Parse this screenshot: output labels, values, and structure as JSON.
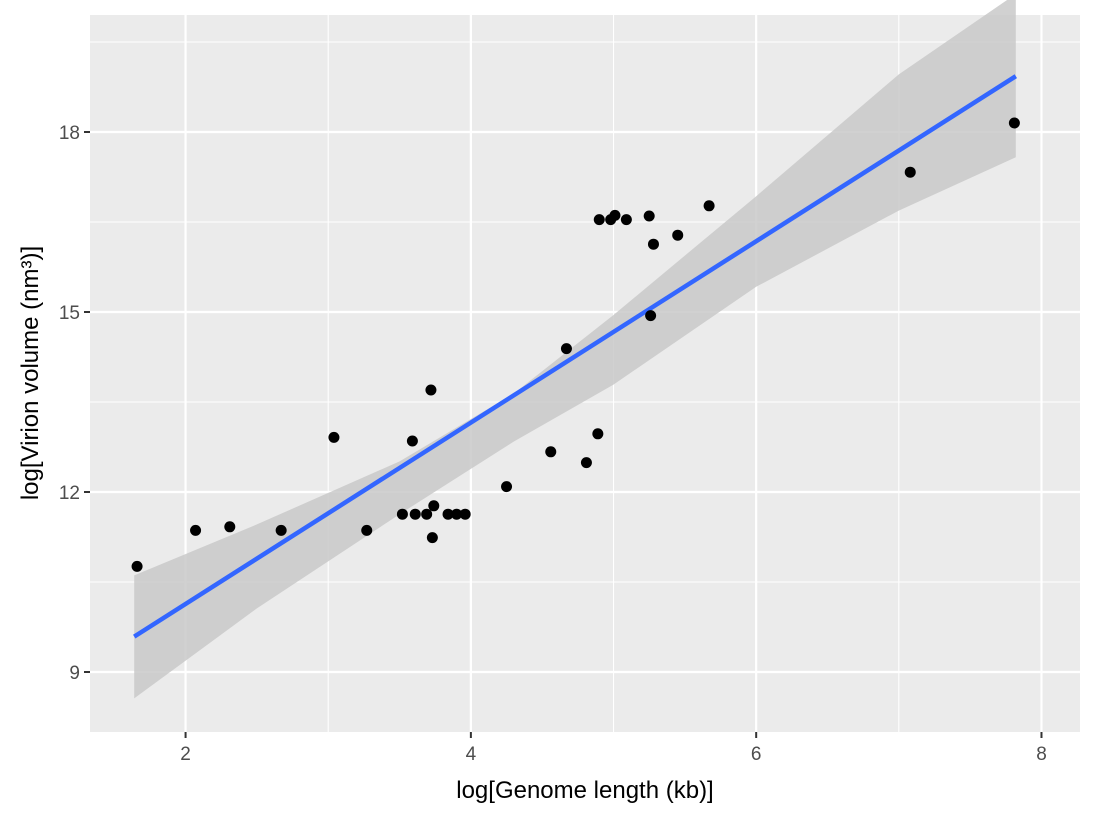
{
  "chart_data": {
    "type": "scatter",
    "xlabel": "log[Genome length (kb)]",
    "ylabel": "log[Virion volume (nm³)]",
    "xlim": [
      1.33,
      8.27
    ],
    "ylim": [
      8.0,
      19.95
    ],
    "x_ticks": [
      2,
      4,
      6,
      8
    ],
    "x_minor_ticks": [
      3,
      5,
      7
    ],
    "y_ticks": [
      9,
      12,
      15,
      18
    ],
    "y_minor_ticks": [
      10.5,
      13.5,
      16.5,
      19.5
    ],
    "grid": true,
    "legend": "none",
    "colors": {
      "panel": "#ebebeb",
      "grid": "#ffffff",
      "point": "#000000",
      "fit_line": "#3366ff",
      "ci_band": "#c9c9c9"
    },
    "points": [
      {
        "x": 1.66,
        "y": 10.76
      },
      {
        "x": 2.07,
        "y": 11.36
      },
      {
        "x": 2.31,
        "y": 11.42
      },
      {
        "x": 2.67,
        "y": 11.36
      },
      {
        "x": 3.04,
        "y": 12.91
      },
      {
        "x": 3.27,
        "y": 11.36
      },
      {
        "x": 3.52,
        "y": 11.63
      },
      {
        "x": 3.59,
        "y": 12.85
      },
      {
        "x": 3.61,
        "y": 11.63
      },
      {
        "x": 3.69,
        "y": 11.63
      },
      {
        "x": 3.72,
        "y": 13.7
      },
      {
        "x": 3.73,
        "y": 11.24
      },
      {
        "x": 3.74,
        "y": 11.77
      },
      {
        "x": 3.84,
        "y": 11.63
      },
      {
        "x": 3.9,
        "y": 11.63
      },
      {
        "x": 3.96,
        "y": 11.63
      },
      {
        "x": 4.25,
        "y": 12.09
      },
      {
        "x": 4.56,
        "y": 12.67
      },
      {
        "x": 4.67,
        "y": 14.39
      },
      {
        "x": 4.81,
        "y": 12.49
      },
      {
        "x": 4.89,
        "y": 12.97
      },
      {
        "x": 4.9,
        "y": 16.54
      },
      {
        "x": 4.98,
        "y": 16.54
      },
      {
        "x": 5.01,
        "y": 16.61
      },
      {
        "x": 5.09,
        "y": 16.54
      },
      {
        "x": 5.25,
        "y": 16.6
      },
      {
        "x": 5.26,
        "y": 14.94
      },
      {
        "x": 5.28,
        "y": 16.13
      },
      {
        "x": 5.45,
        "y": 16.28
      },
      {
        "x": 5.67,
        "y": 16.77
      },
      {
        "x": 7.08,
        "y": 17.33
      },
      {
        "x": 7.81,
        "y": 18.15
      }
    ],
    "fit": {
      "x0": 1.64,
      "y0": 9.59,
      "x1": 7.82,
      "y1": 18.93
    },
    "confidence_band": {
      "x": [
        1.64,
        2.5,
        3.5,
        4.3,
        5.0,
        6.0,
        7.0,
        7.82
      ],
      "upper": [
        10.61,
        11.46,
        12.51,
        13.64,
        14.95,
        16.93,
        18.96,
        20.3
      ],
      "lower": [
        8.56,
        10.06,
        11.63,
        12.84,
        13.79,
        15.42,
        16.69,
        17.58
      ]
    }
  }
}
